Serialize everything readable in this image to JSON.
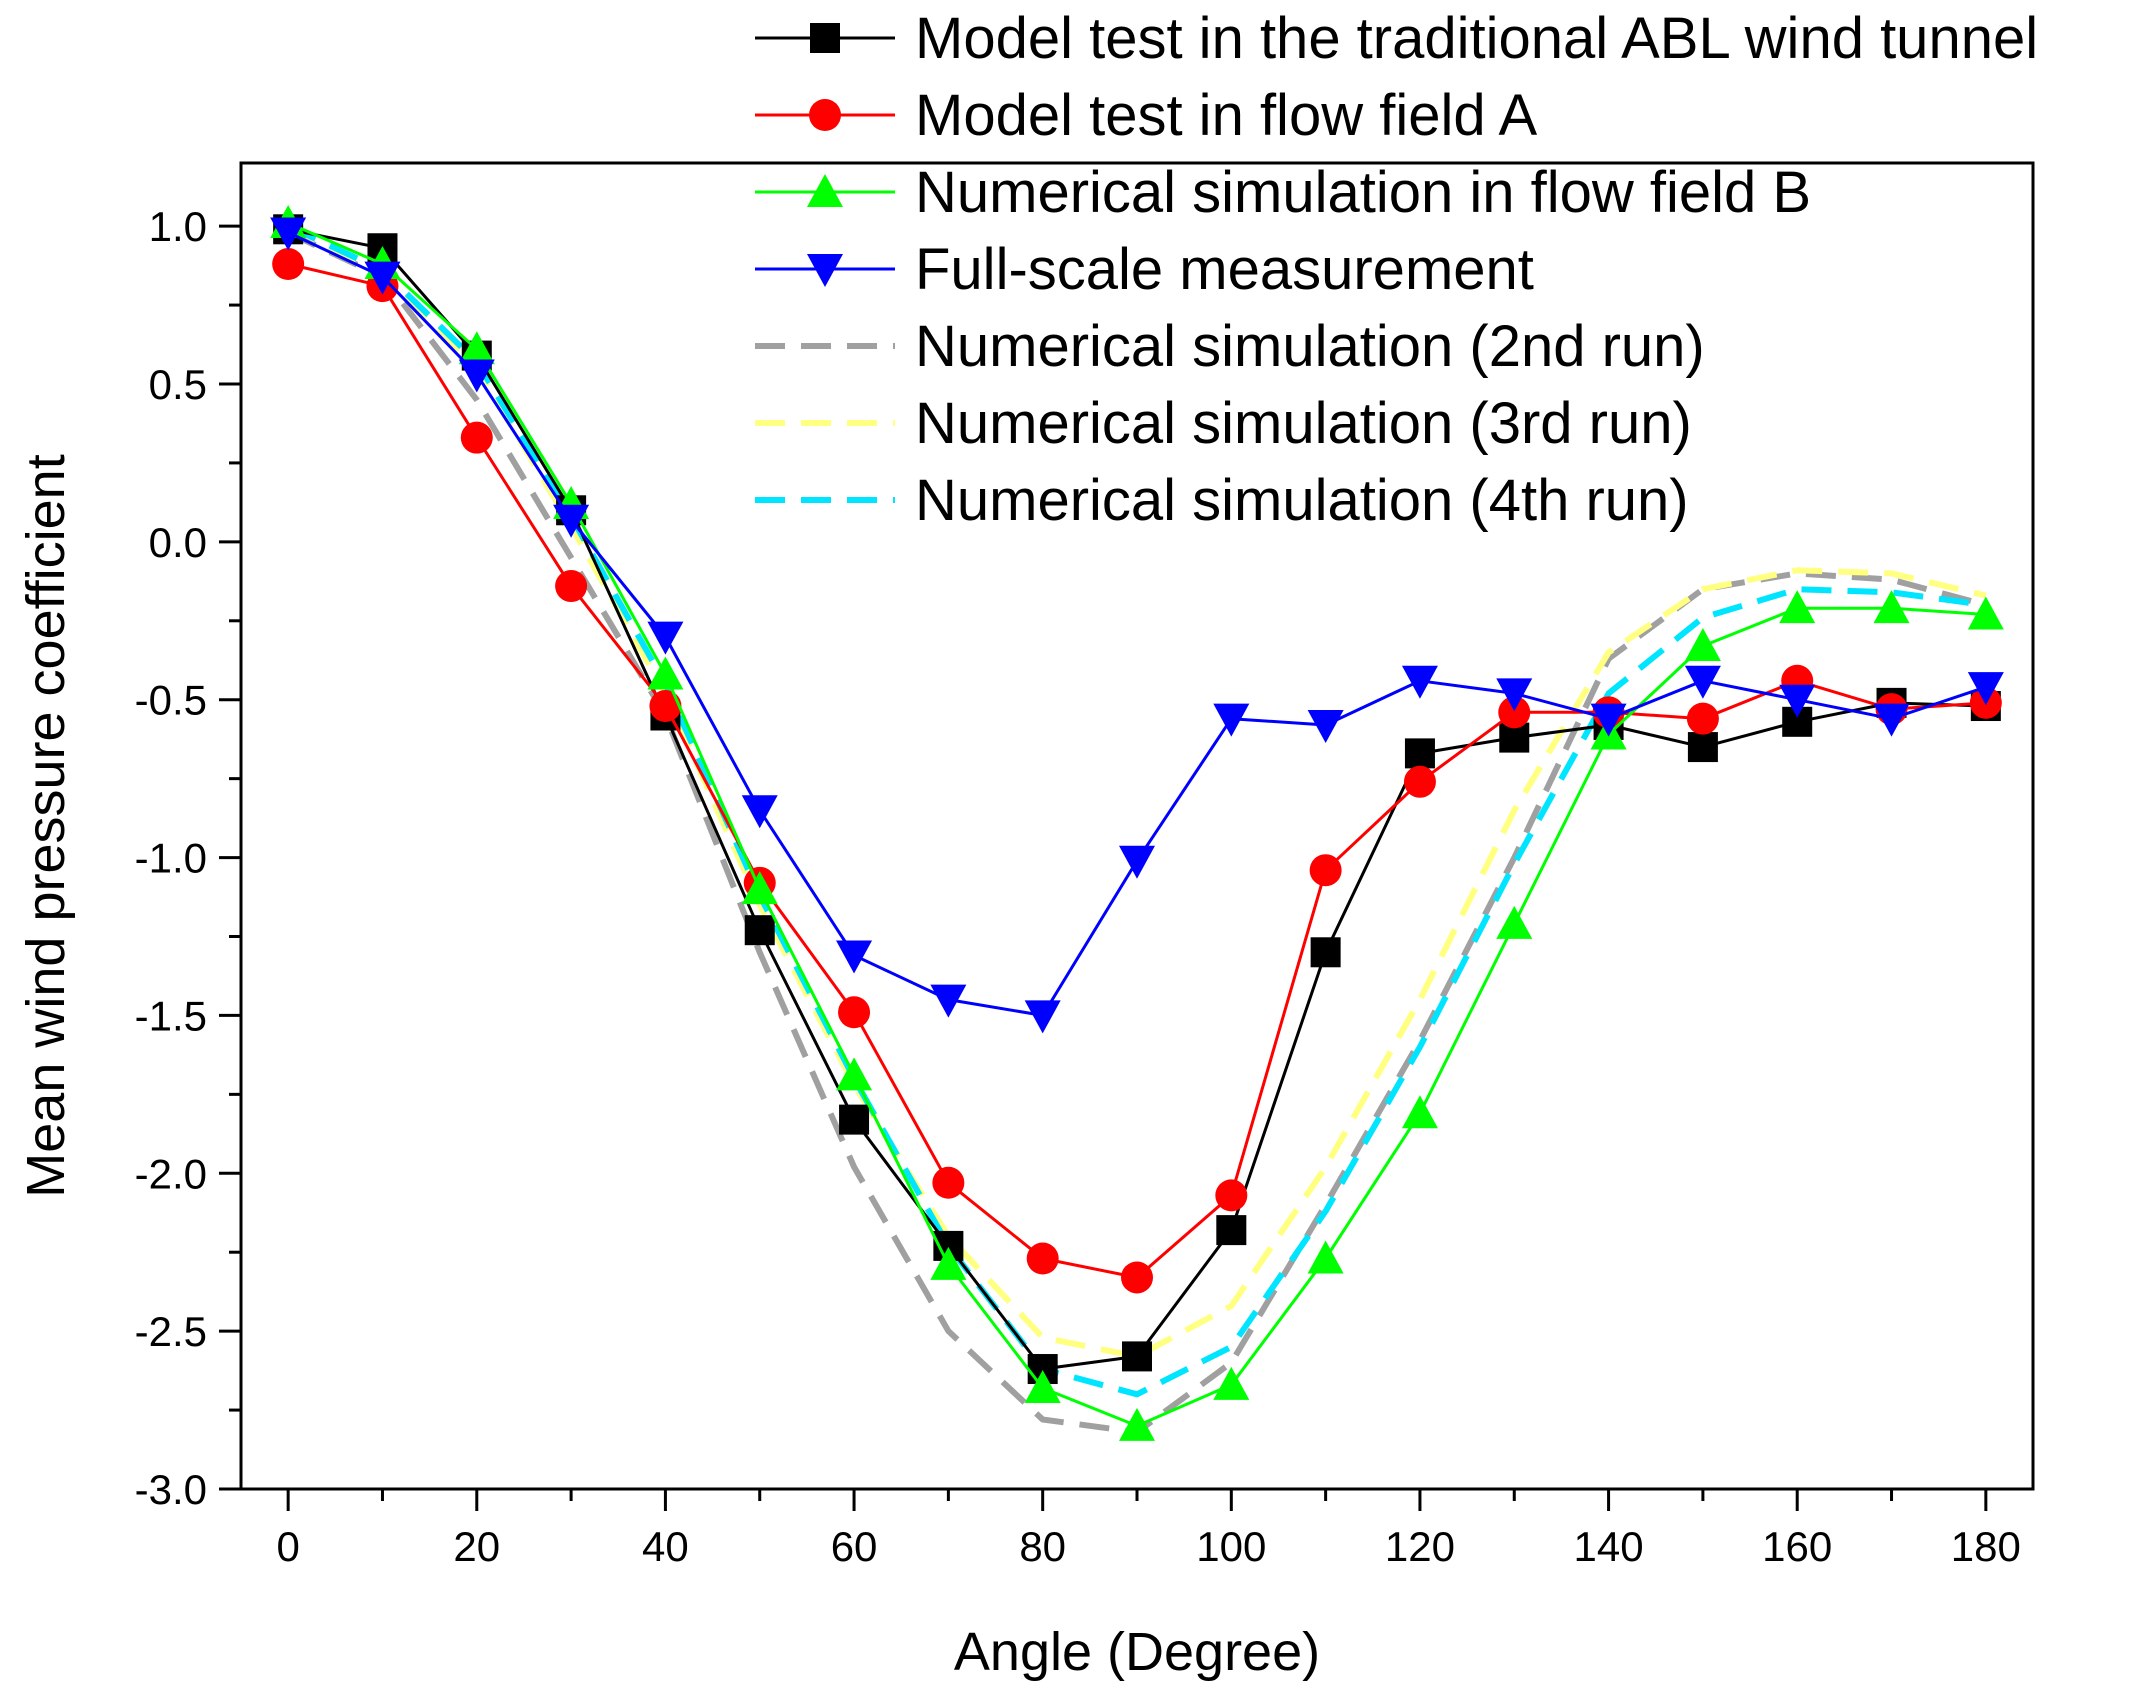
{
  "chart_data": {
    "type": "line",
    "title": "",
    "xlabel": "Angle (Degree)",
    "ylabel": "Mean wind pressure coefficient",
    "xlim": [
      -5,
      185
    ],
    "ylim": [
      -3.0,
      1.2
    ],
    "x_ticks": [
      0,
      20,
      40,
      60,
      80,
      100,
      120,
      140,
      160,
      180
    ],
    "x_tick_labels": [
      "0",
      "20",
      "40",
      "60",
      "80",
      "100",
      "120",
      "140",
      "160",
      "180"
    ],
    "y_ticks": [
      1.0,
      0.5,
      0.0,
      -0.5,
      -1.0,
      -1.5,
      -2.0,
      -2.5,
      -3.0
    ],
    "y_tick_labels": [
      "1.0",
      "0.5",
      "0.0",
      "-0.5",
      "-1.0",
      "-1.5",
      "-2.0",
      "-2.5",
      "-3.0"
    ],
    "grid": false,
    "legend_position": "top-right",
    "x": [
      0,
      10,
      20,
      30,
      40,
      50,
      60,
      70,
      80,
      90,
      100,
      110,
      120,
      130,
      140,
      150,
      160,
      170,
      180
    ],
    "series": [
      {
        "name": "Model test in the traditional ABL wind tunnel",
        "color": "#000000",
        "marker": "square",
        "style": "solid",
        "values": [
          0.99,
          0.93,
          0.59,
          0.1,
          -0.55,
          -1.23,
          -1.83,
          -2.23,
          -2.62,
          -2.58,
          -2.18,
          -1.3,
          -0.67,
          -0.62,
          -0.58,
          -0.65,
          -0.57,
          -0.51,
          -0.52
        ]
      },
      {
        "name": "Model test in flow field A",
        "color": "#ff0000",
        "marker": "circle",
        "style": "solid",
        "values": [
          0.88,
          0.81,
          0.33,
          -0.14,
          -0.52,
          -1.08,
          -1.49,
          -2.03,
          -2.27,
          -2.33,
          -2.07,
          -1.04,
          -0.76,
          -0.54,
          -0.54,
          -0.56,
          -0.44,
          -0.53,
          -0.51
        ]
      },
      {
        "name": "Numerical simulation in flow field B",
        "color": "#00ff00",
        "marker": "triangle-up",
        "style": "solid",
        "values": [
          1.01,
          0.88,
          0.61,
          0.12,
          -0.42,
          -1.1,
          -1.69,
          -2.29,
          -2.68,
          -2.8,
          -2.67,
          -2.27,
          -1.81,
          -1.21,
          -0.61,
          -0.33,
          -0.21,
          -0.21,
          -0.23
        ]
      },
      {
        "name": "Full-scale measurement",
        "color": "#0000ff",
        "marker": "triangle-down",
        "style": "solid",
        "values": [
          0.98,
          0.84,
          0.53,
          0.07,
          -0.3,
          -0.85,
          -1.31,
          -1.45,
          -1.5,
          -1.01,
          -0.56,
          -0.58,
          -0.44,
          -0.48,
          -0.56,
          -0.44,
          -0.5,
          -0.56,
          -0.46
        ]
      },
      {
        "name": "Numerical simulation (2nd run)",
        "color": "#a0a0a0",
        "marker": "none",
        "style": "dashed",
        "values": [
          0.98,
          0.84,
          0.45,
          -0.05,
          -0.55,
          -1.3,
          -1.98,
          -2.5,
          -2.78,
          -2.82,
          -2.6,
          -2.1,
          -1.58,
          -1.0,
          -0.37,
          -0.15,
          -0.1,
          -0.12,
          -0.2
        ]
      },
      {
        "name": "Numerical simulation (3rd run)",
        "color": "#ffff80",
        "marker": "none",
        "style": "dashed",
        "values": [
          1.0,
          0.85,
          0.55,
          0.05,
          -0.48,
          -1.15,
          -1.72,
          -2.2,
          -2.52,
          -2.58,
          -2.42,
          -1.98,
          -1.45,
          -0.85,
          -0.35,
          -0.15,
          -0.09,
          -0.1,
          -0.17
        ]
      },
      {
        "name": "Numerical simulation (4th run)",
        "color": "#00e5ff",
        "marker": "none",
        "style": "dashed",
        "values": [
          1.0,
          0.86,
          0.57,
          0.08,
          -0.45,
          -1.12,
          -1.7,
          -2.23,
          -2.62,
          -2.7,
          -2.55,
          -2.12,
          -1.6,
          -1.02,
          -0.48,
          -0.24,
          -0.15,
          -0.16,
          -0.2
        ]
      }
    ]
  }
}
